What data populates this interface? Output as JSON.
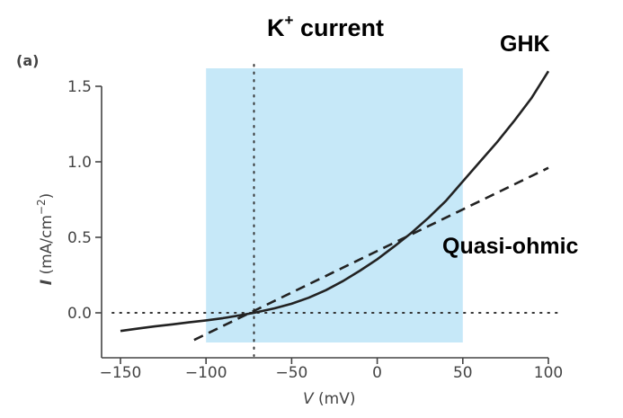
{
  "chart_data": {
    "type": "line",
    "panel_label": "(a)",
    "title": {
      "main": "K",
      "superscript": "+",
      "rest": " current"
    },
    "xlabel": {
      "var": "V",
      "unit": " (mV)"
    },
    "ylabel": {
      "var": "I",
      "unit": " (mA/cm",
      "exp": "−2",
      "close": ")"
    },
    "xlim": [
      -150,
      100
    ],
    "ylim": [
      -0.18,
      1.62
    ],
    "xticks": [
      -150,
      -100,
      -50,
      0,
      50,
      100
    ],
    "xtick_labels": [
      "−150",
      "−100",
      "−50",
      "0",
      "50",
      "100"
    ],
    "yticks": [
      0.0,
      0.5,
      1.0,
      1.5
    ],
    "ytick_labels": [
      "0.0",
      "0.5",
      "1.0",
      "1.5"
    ],
    "shaded_region": {
      "x": [
        -100,
        50
      ],
      "color": "#c6e8f8"
    },
    "vertical_dotted_line": {
      "x": -72
    },
    "horizontal_dotted_line": {
      "y": 0
    },
    "series": [
      {
        "name": "GHK",
        "style": "solid",
        "color": "#222222",
        "x": [
          -150,
          -140,
          -130,
          -120,
          -110,
          -100,
          -90,
          -80,
          -72,
          -60,
          -50,
          -40,
          -30,
          -20,
          -10,
          0,
          10,
          20,
          30,
          40,
          50,
          60,
          70,
          80,
          90,
          100
        ],
        "y": [
          -0.12,
          -0.105,
          -0.09,
          -0.077,
          -0.063,
          -0.05,
          -0.035,
          -0.016,
          0.0,
          0.03,
          0.06,
          0.1,
          0.15,
          0.21,
          0.28,
          0.355,
          0.44,
          0.53,
          0.63,
          0.74,
          0.87,
          1.0,
          1.13,
          1.27,
          1.42,
          1.6
        ]
      },
      {
        "name": "Quasi-ohmic",
        "style": "dashed",
        "color": "#222222",
        "x": [
          -107,
          100
        ],
        "y": [
          -0.18,
          0.96
        ]
      }
    ]
  }
}
